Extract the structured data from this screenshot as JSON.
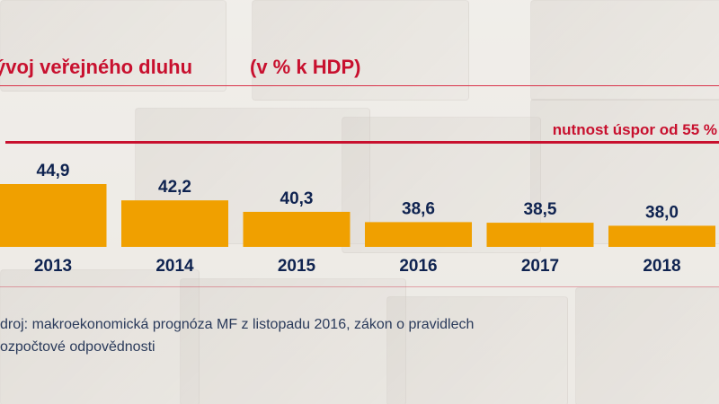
{
  "title": "ývoj veřejného dluhu",
  "subtitle": "(v % k HDP)",
  "threshold_label": "nutnost úspor od 55 %",
  "source_lines": [
    "droj: makroekonomická prognóza MF z listopadu 2016, zákon o pravidlech",
    "ozpočtové odpovědnosti"
  ],
  "colors": {
    "bar": "#f0a000",
    "accent": "#c8102e",
    "label": "#0f2350"
  },
  "chart_data": {
    "type": "bar",
    "categories": [
      "2013",
      "2014",
      "2015",
      "2016",
      "2017",
      "2018"
    ],
    "values": [
      44.9,
      42.2,
      40.3,
      38.6,
      38.5,
      38.0
    ],
    "value_labels": [
      "44,9",
      "42,2",
      "40,3",
      "38,6",
      "38,5",
      "38,0"
    ],
    "title": "ývoj veřejného dluhu",
    "xlabel": "",
    "ylabel": "",
    "threshold": 55,
    "ylim": [
      0,
      55
    ],
    "grid": false,
    "legend": "none"
  }
}
